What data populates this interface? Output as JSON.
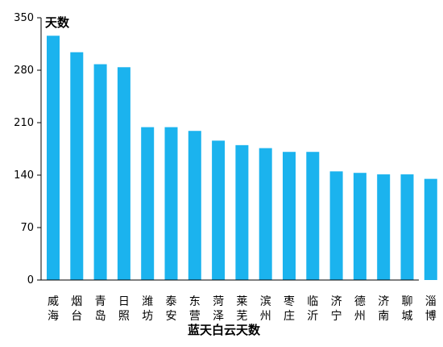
{
  "chart_data": {
    "type": "bar",
    "categories": [
      "威海",
      "烟台",
      "青岛",
      "日照",
      "潍坊",
      "泰安",
      "东营",
      "菏泽",
      "莱芜",
      "滨州",
      "枣庄",
      "临沂",
      "济宁",
      "德州",
      "济南",
      "聊城",
      "淄博"
    ],
    "values": [
      326,
      304,
      288,
      284,
      204,
      204,
      199,
      186,
      180,
      176,
      171,
      171,
      145,
      143,
      141,
      141,
      135
    ],
    "title": "",
    "xlabel": "蓝天白云天数",
    "ylabel": "天数",
    "ylim": [
      0,
      350
    ],
    "yticks": [
      0,
      70,
      140,
      210,
      280,
      350
    ],
    "bar_color": "#1BB3EE",
    "grid": false,
    "legend": "none"
  }
}
